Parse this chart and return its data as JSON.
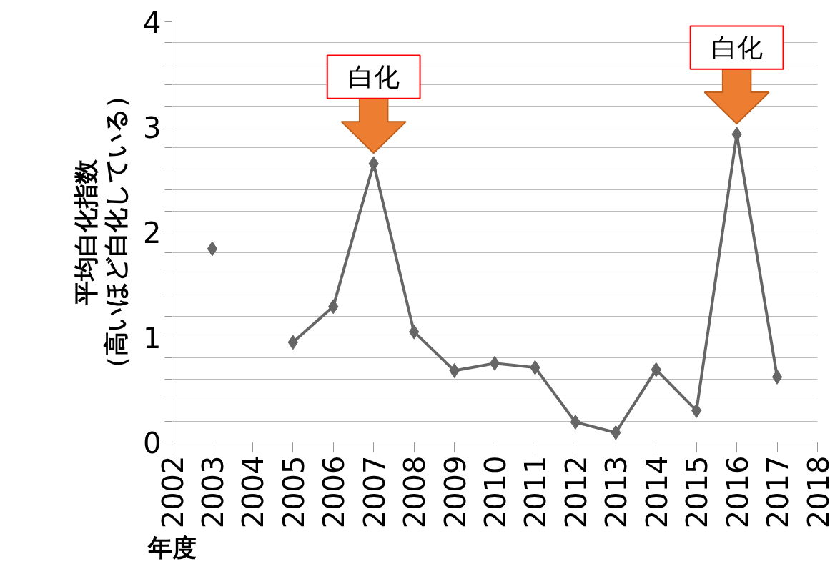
{
  "chart_data": {
    "type": "line",
    "xlabel": "年度",
    "ylabel": "平均白化指数",
    "x": [
      2003,
      2004,
      2005,
      2006,
      2007,
      2008,
      2009,
      2010,
      2011,
      2012,
      2013,
      2014,
      2015,
      2016,
      2017
    ],
    "series": [
      {
        "color": "#666666",
        "values": [
          1.84,
          null,
          0.95,
          1.29,
          2.65,
          1.05,
          0.68,
          0.75,
          0.71,
          0.19,
          0.09,
          0.69,
          0.3,
          2.93,
          0.62
        ]
      }
    ],
    "xlim": [
      2002,
      2018
    ],
    "xticks": [
      2002,
      2003,
      2004,
      2005,
      2006,
      2007,
      2008,
      2009,
      2010,
      2011,
      2012,
      2013,
      2014,
      2015,
      2016,
      2017,
      2018
    ],
    "ylim": [
      0,
      4
    ],
    "yticks": [
      0,
      {
        "value": 0.2,
        "label": null
      },
      {
        "value": 0.4,
        "label": null
      },
      {
        "value": 0.6,
        "label": null
      },
      {
        "value": 0.8,
        "label": null
      },
      1,
      {
        "value": 1.2,
        "label": null
      },
      {
        "value": 1.4,
        "label": null
      },
      {
        "value": 1.6,
        "label": null
      },
      {
        "value": 1.8,
        "label": null
      },
      2,
      {
        "value": 2.2,
        "label": null
      },
      {
        "value": 2.4,
        "label": null
      },
      {
        "value": 2.6,
        "label": null
      },
      {
        "value": 2.8,
        "label": null
      },
      3,
      {
        "value": 3.2,
        "label": null
      },
      {
        "value": 3.4,
        "label": null
      },
      {
        "value": 3.6,
        "label": null
      },
      {
        "value": 3.8,
        "label": null
      },
      4
    ],
    "annotations": [
      "（高いほど白化している）",
      {
        "text": "白化",
        "x": 2007,
        "y": 2.65
      },
      {
        "text": "白化",
        "x": 2016,
        "y": 2.93
      }
    ],
    "grid": "y",
    "marker": "diamond",
    "line_style": "solid"
  }
}
